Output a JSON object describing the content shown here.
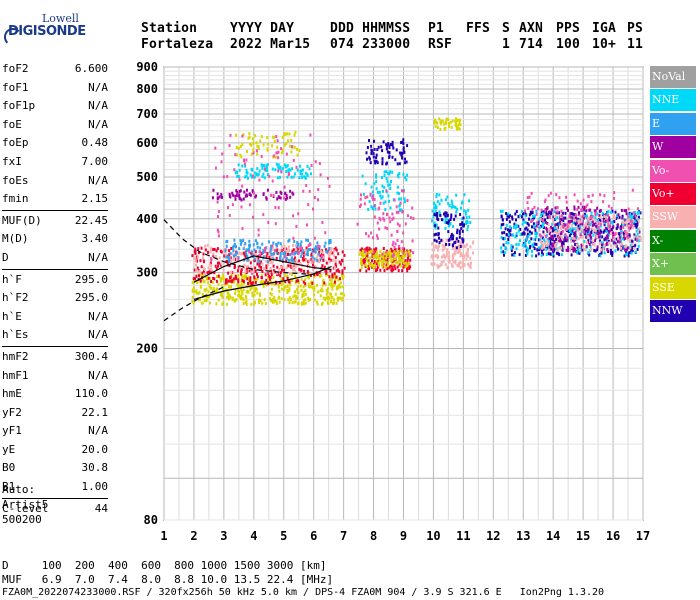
{
  "logo": {
    "top": "Lowell",
    "main": "DIGISONDE"
  },
  "header": {
    "labels": [
      "Station",
      "YYYY DAY",
      "DDD HHMMSS",
      "P1",
      "FFS",
      "S",
      "AXN",
      "PPS",
      "IGA",
      "PS"
    ],
    "values": [
      "Fortaleza",
      "2022 Mar15",
      "074 233000",
      "RSF",
      "1",
      "714",
      "100",
      "10+",
      "11"
    ]
  },
  "params": [
    [
      [
        "foF2",
        "6.600"
      ],
      [
        "foF1",
        "N/A"
      ],
      [
        "foF1p",
        "N/A"
      ],
      [
        "foE",
        "N/A"
      ],
      [
        "foEp",
        "0.48"
      ],
      [
        "fxI",
        "7.00"
      ],
      [
        "foEs",
        "N/A"
      ],
      [
        "fmin",
        "2.15"
      ]
    ],
    [
      [
        "MUF(D)",
        "22.45"
      ],
      [
        "M(D)",
        "3.40"
      ],
      [
        "D",
        "N/A"
      ]
    ],
    [
      [
        "h`F",
        "295.0"
      ],
      [
        "h`F2",
        "295.0"
      ],
      [
        "h`E",
        "N/A"
      ],
      [
        "h`Es",
        "N/A"
      ]
    ],
    [
      [
        "hmF2",
        "300.4"
      ],
      [
        "hmF1",
        "N/A"
      ],
      [
        "hmE",
        "110.0"
      ],
      [
        "yF2",
        "22.1"
      ],
      [
        "yF1",
        "N/A"
      ],
      [
        "yE",
        "20.0"
      ],
      [
        "B0",
        "30.8"
      ],
      [
        "B1",
        "1.00"
      ]
    ],
    [
      [
        "C-level",
        "44"
      ]
    ]
  ],
  "auto": [
    "Auto:",
    "Artist5",
    "500200"
  ],
  "footer": {
    "line1": "D     100  200  400  600  800 1000 1500 3000 [km]",
    "line2": "MUF   6.9  7.0  7.4  8.0  8.8 10.0 13.5 22.4 [MHz]",
    "line3": "FZA0M_2022074233000.RSF / 320fx256h 50 kHz 5.0 km / DPS-4 FZA0M 904 / 3.9 S 321.6 E   Ion2Png 1.3.20"
  },
  "legend": [
    {
      "label": "NoVal",
      "color": "#a0a0a0"
    },
    {
      "label": "NNE",
      "color": "#00d8f8"
    },
    {
      "label": "E",
      "color": "#30a0f0"
    },
    {
      "label": "W",
      "color": "#a000a0"
    },
    {
      "label": "Vo-",
      "color": "#f050b0"
    },
    {
      "label": "Vo+",
      "color": "#f00030"
    },
    {
      "label": "SSW",
      "color": "#f8b0b0"
    },
    {
      "label": "X-",
      "color": "#008000"
    },
    {
      "label": "X+",
      "color": "#70c050"
    },
    {
      "label": "SSE",
      "color": "#d8d800"
    },
    {
      "label": "NNW",
      "color": "#2000b0"
    }
  ],
  "chart_data": {
    "type": "scatter",
    "title": "",
    "xlabel": "",
    "ylabel": "",
    "xlim": [
      1,
      17
    ],
    "ylim": [
      80,
      900
    ],
    "y_axis_scale": "log",
    "x_ticks": [
      1,
      2,
      3,
      4,
      5,
      6,
      7,
      8,
      9,
      10,
      11,
      12,
      13,
      14,
      15,
      16,
      17
    ],
    "y_ticks": [
      80,
      200,
      300,
      400,
      500,
      600,
      700,
      800,
      900
    ],
    "grid": true,
    "legend_position": "right",
    "clusters": [
      {
        "color": "#d8d800",
        "x": [
          1.9,
          7.0
        ],
        "y": [
          255,
          300
        ],
        "n": 420
      },
      {
        "color": "#f00030",
        "x": [
          1.9,
          7.0
        ],
        "y": [
          285,
          345
        ],
        "n": 320
      },
      {
        "color": "#f8b0b0",
        "x": [
          2.0,
          6.8
        ],
        "y": [
          300,
          350
        ],
        "n": 160
      },
      {
        "color": "#30a0f0",
        "x": [
          3.0,
          6.6
        ],
        "y": [
          320,
          360
        ],
        "n": 140
      },
      {
        "color": "#00d8f8",
        "x": [
          3.3,
          5.9
        ],
        "y": [
          500,
          540
        ],
        "n": 90
      },
      {
        "color": "#d8d800",
        "x": [
          3.3,
          5.5
        ],
        "y": [
          560,
          640
        ],
        "n": 60
      },
      {
        "color": "#a000a0",
        "x": [
          2.6,
          5.3
        ],
        "y": [
          445,
          470
        ],
        "n": 60
      },
      {
        "color": "#f050b0",
        "x": [
          2.5,
          6.5
        ],
        "y": [
          320,
          640
        ],
        "n": 110
      },
      {
        "color": "#f00030",
        "x": [
          7.5,
          9.2
        ],
        "y": [
          305,
          345
        ],
        "n": 160
      },
      {
        "color": "#d8d800",
        "x": [
          7.5,
          9.2
        ],
        "y": [
          310,
          340
        ],
        "n": 120
      },
      {
        "color": "#2000b0",
        "x": [
          7.7,
          9.1
        ],
        "y": [
          540,
          615
        ],
        "n": 70
      },
      {
        "color": "#00d8f8",
        "x": [
          7.6,
          9.1
        ],
        "y": [
          420,
          520
        ],
        "n": 70
      },
      {
        "color": "#f050b0",
        "x": [
          7.4,
          9.3
        ],
        "y": [
          330,
          470
        ],
        "n": 80
      },
      {
        "color": "#f8b0b0",
        "x": [
          9.9,
          11.3
        ],
        "y": [
          310,
          360
        ],
        "n": 140
      },
      {
        "color": "#00d8f8",
        "x": [
          9.9,
          11.2
        ],
        "y": [
          380,
          460
        ],
        "n": 70
      },
      {
        "color": "#d8d800",
        "x": [
          10.0,
          10.9
        ],
        "y": [
          650,
          690
        ],
        "n": 45
      },
      {
        "color": "#2000b0",
        "x": [
          10.0,
          11.0
        ],
        "y": [
          345,
          420
        ],
        "n": 70
      },
      {
        "color": "#2000b0",
        "x": [
          12.2,
          16.9
        ],
        "y": [
          330,
          420
        ],
        "n": 420
      },
      {
        "color": "#00d8f8",
        "x": [
          12.2,
          16.9
        ],
        "y": [
          330,
          420
        ],
        "n": 240
      },
      {
        "color": "#a000a0",
        "x": [
          13.7,
          16.6
        ],
        "y": [
          340,
          430
        ],
        "n": 180
      },
      {
        "color": "#f8b0b0",
        "x": [
          13.5,
          16.9
        ],
        "y": [
          340,
          410
        ],
        "n": 160
      },
      {
        "color": "#f050b0",
        "x": [
          13.0,
          16.8
        ],
        "y": [
          360,
          470
        ],
        "n": 100
      }
    ],
    "curves": [
      {
        "style": "solid",
        "x": [
          2,
          3,
          4,
          5,
          6,
          6.6
        ],
        "y": [
          260,
          272,
          280,
          287,
          298,
          310
        ]
      },
      {
        "style": "solid",
        "x": [
          2,
          3,
          4,
          5,
          6,
          6.6
        ],
        "y": [
          285,
          310,
          328,
          318,
          308,
          305
        ]
      },
      {
        "style": "dashed",
        "x": [
          1,
          1.6,
          2.2,
          3,
          4,
          5,
          6
        ],
        "y": [
          398,
          360,
          335,
          318,
          305,
          300,
          297
        ]
      },
      {
        "style": "dashed",
        "x": [
          1,
          1.6,
          2.2,
          3
        ],
        "y": [
          232,
          248,
          262,
          278
        ]
      }
    ]
  }
}
